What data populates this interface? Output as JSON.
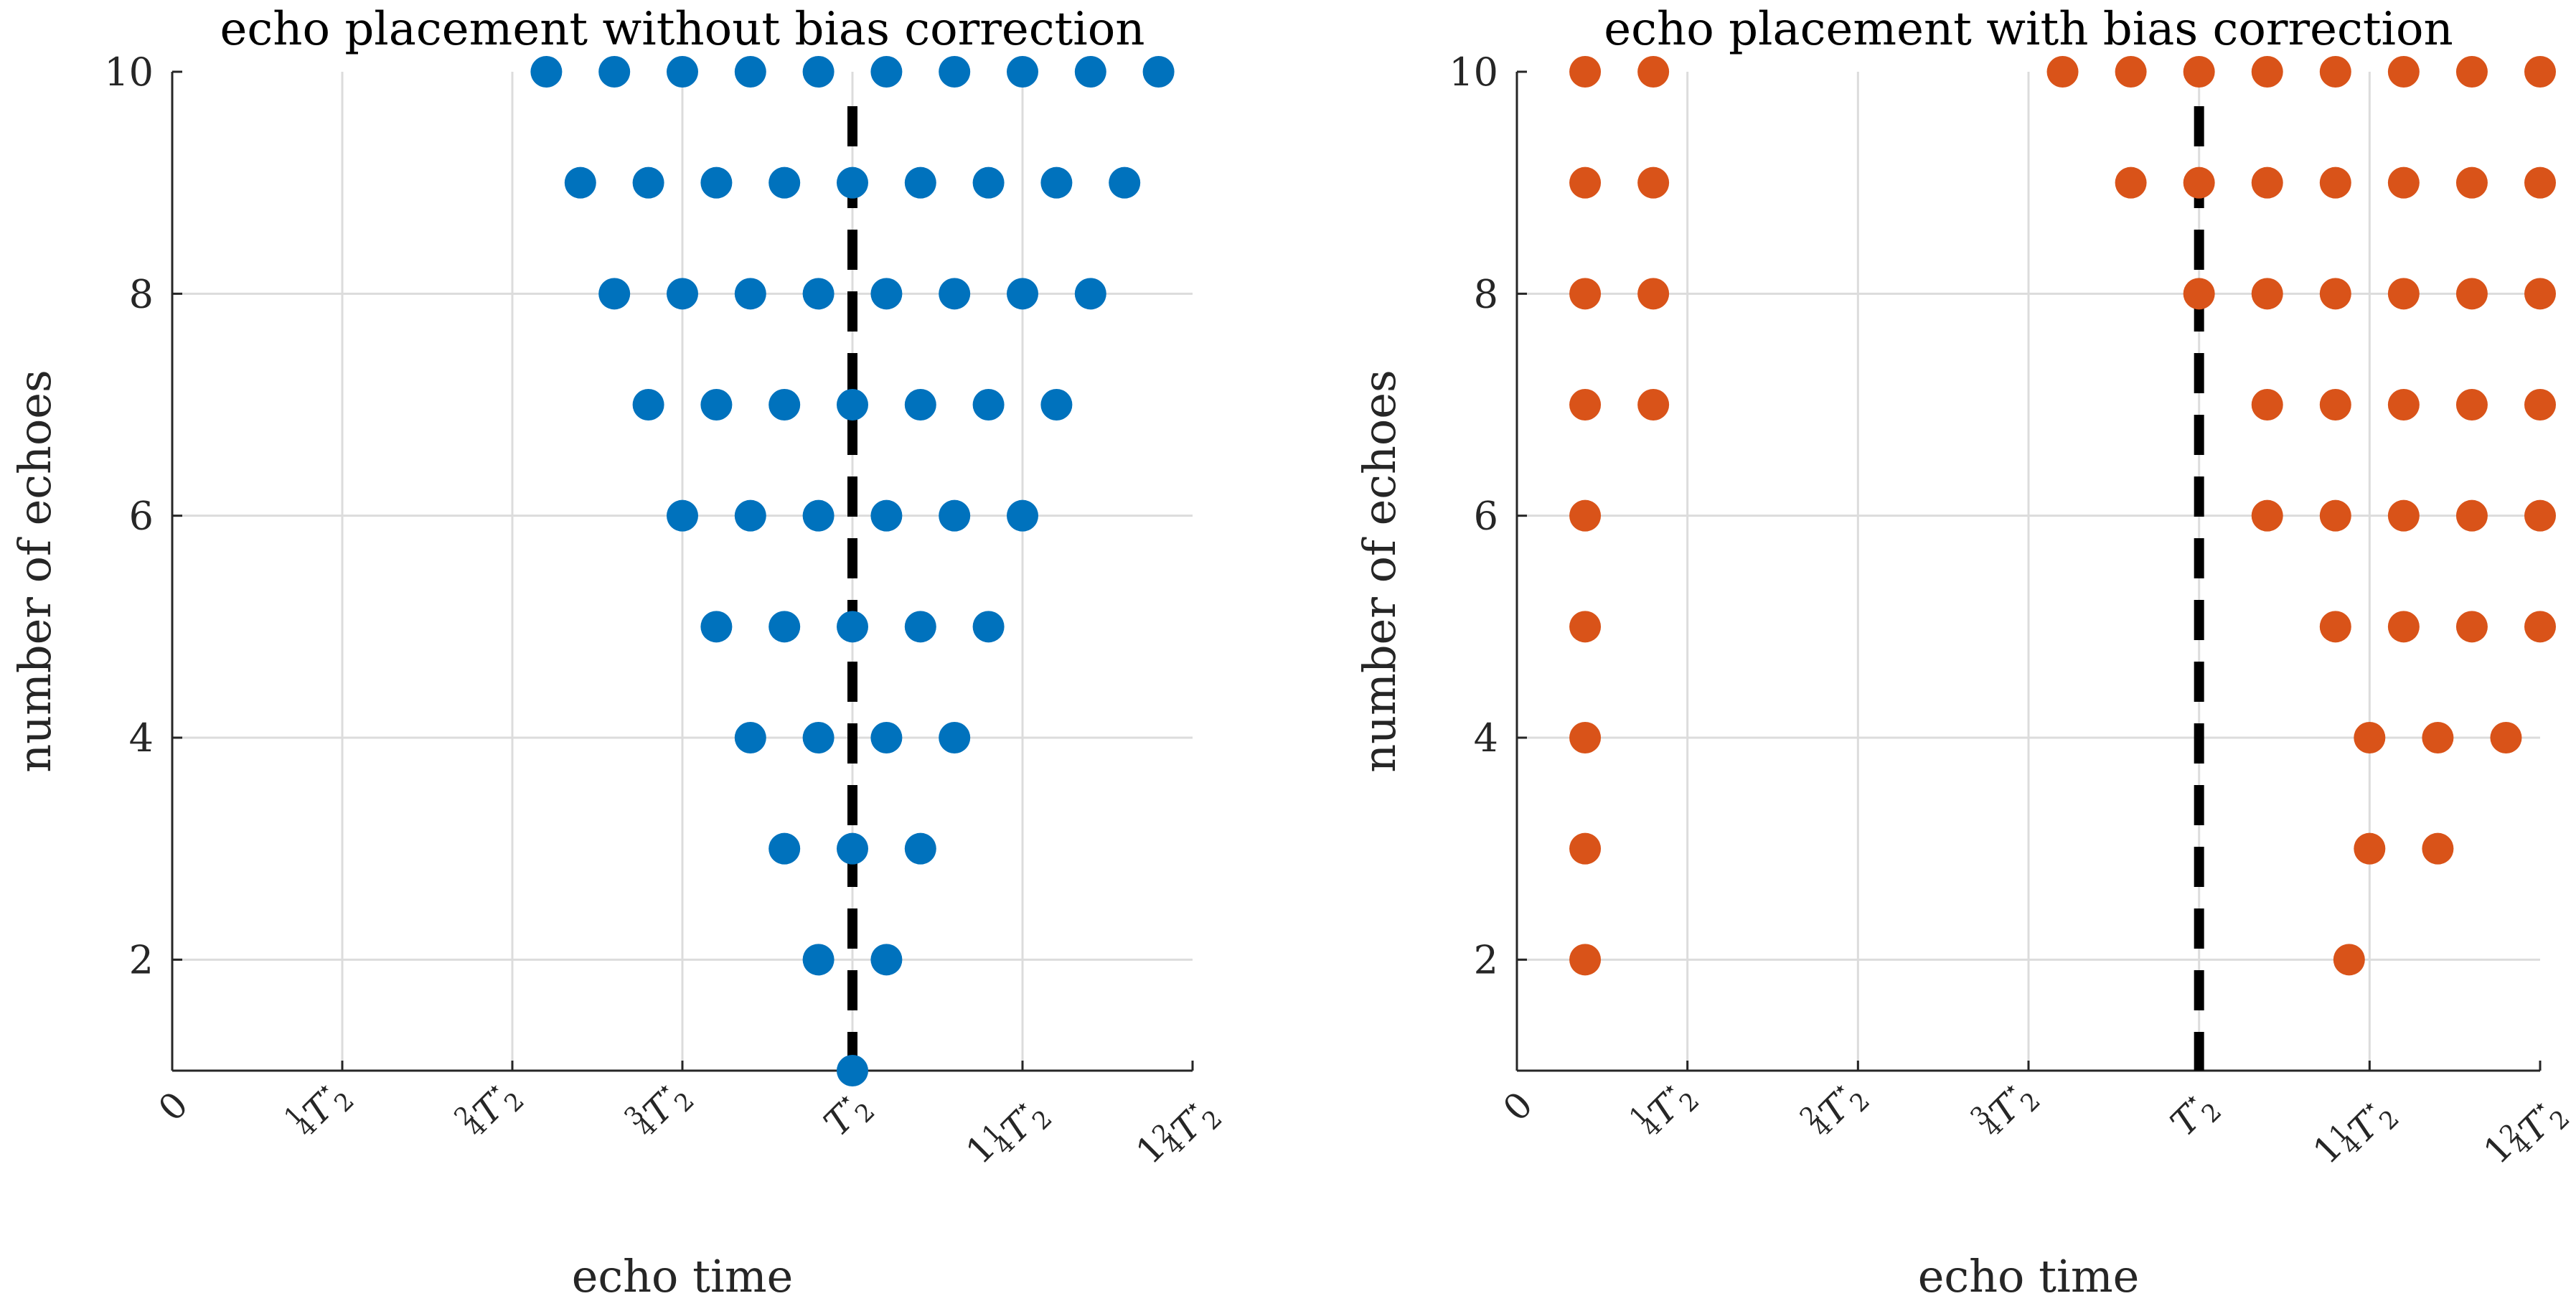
{
  "colors": {
    "left": "#0072BD",
    "right": "#D95319",
    "reference": "#000000",
    "grid": "#DCDCDC",
    "axis": "#262626"
  },
  "chart_data": [
    {
      "type": "scatter",
      "title": "echo placement without bias correction",
      "xlabel": "echo time",
      "ylabel": "number of echoes",
      "xlim": [
        0,
        1.5
      ],
      "ylim": [
        1,
        10
      ],
      "x_ticks": [
        0,
        0.25,
        0.5,
        0.75,
        1.0,
        1.25,
        1.5
      ],
      "x_tick_labels": [
        {
          "whole": "0"
        },
        {
          "whole": "",
          "num": "1",
          "den": "4",
          "sym": "T",
          "sub": "2",
          "sup": "⋆"
        },
        {
          "whole": "",
          "num": "2",
          "den": "4",
          "sym": "T",
          "sub": "2",
          "sup": "⋆"
        },
        {
          "whole": "",
          "num": "3",
          "den": "4",
          "sym": "T",
          "sub": "2",
          "sup": "⋆"
        },
        {
          "whole": "",
          "sym": "T",
          "sub": "2",
          "sup": "⋆"
        },
        {
          "whole": "1",
          "num": "1",
          "den": "4",
          "sym": "T",
          "sub": "2",
          "sup": "⋆"
        },
        {
          "whole": "1",
          "num": "2",
          "den": "4",
          "sym": "T",
          "sub": "2",
          "sup": "⋆"
        }
      ],
      "y_ticks": [
        2,
        4,
        6,
        8,
        10
      ],
      "y_tick_labels": [
        "2",
        "4",
        "6",
        "8",
        "10"
      ],
      "reference_line": 1.0,
      "grid": true,
      "points": [
        {
          "y": 1,
          "x": [
            1.0
          ]
        },
        {
          "y": 2,
          "x": [
            0.95,
            1.05
          ]
        },
        {
          "y": 3,
          "x": [
            0.9,
            1.0,
            1.1
          ]
        },
        {
          "y": 4,
          "x": [
            0.85,
            0.95,
            1.05,
            1.15
          ]
        },
        {
          "y": 5,
          "x": [
            0.8,
            0.9,
            1.0,
            1.1,
            1.2
          ]
        },
        {
          "y": 6,
          "x": [
            0.75,
            0.85,
            0.95,
            1.05,
            1.15,
            1.25
          ]
        },
        {
          "y": 7,
          "x": [
            0.7,
            0.8,
            0.9,
            1.0,
            1.1,
            1.2,
            1.3
          ]
        },
        {
          "y": 8,
          "x": [
            0.65,
            0.75,
            0.85,
            0.95,
            1.05,
            1.15,
            1.25,
            1.35
          ]
        },
        {
          "y": 9,
          "x": [
            0.6,
            0.7,
            0.8,
            0.9,
            1.0,
            1.1,
            1.2,
            1.3,
            1.4
          ]
        },
        {
          "y": 10,
          "x": [
            0.55,
            0.65,
            0.75,
            0.85,
            0.95,
            1.05,
            1.15,
            1.25,
            1.35,
            1.45
          ]
        }
      ]
    },
    {
      "type": "scatter",
      "title": "echo placement with bias correction",
      "xlabel": "echo time",
      "ylabel": "number of echoes",
      "xlim": [
        0,
        1.5
      ],
      "ylim": [
        1,
        10
      ],
      "x_ticks": [
        0,
        0.25,
        0.5,
        0.75,
        1.0,
        1.25,
        1.5
      ],
      "x_tick_labels": [
        {
          "whole": "0"
        },
        {
          "whole": "",
          "num": "1",
          "den": "4",
          "sym": "T",
          "sub": "2",
          "sup": "⋆"
        },
        {
          "whole": "",
          "num": "2",
          "den": "4",
          "sym": "T",
          "sub": "2",
          "sup": "⋆"
        },
        {
          "whole": "",
          "num": "3",
          "den": "4",
          "sym": "T",
          "sub": "2",
          "sup": "⋆"
        },
        {
          "whole": "",
          "sym": "T",
          "sub": "2",
          "sup": "⋆"
        },
        {
          "whole": "1",
          "num": "1",
          "den": "4",
          "sym": "T",
          "sub": "2",
          "sup": "⋆"
        },
        {
          "whole": "1",
          "num": "2",
          "den": "4",
          "sym": "T",
          "sub": "2",
          "sup": "⋆"
        }
      ],
      "y_ticks": [
        2,
        4,
        6,
        8,
        10
      ],
      "y_tick_labels": [
        "2",
        "4",
        "6",
        "8",
        "10"
      ],
      "reference_line": 1.0,
      "grid": true,
      "points": [
        {
          "y": 2,
          "x": [
            0.1,
            1.22
          ]
        },
        {
          "y": 3,
          "x": [
            0.1,
            1.25,
            1.35
          ]
        },
        {
          "y": 4,
          "x": [
            0.1,
            1.25,
            1.35,
            1.45
          ]
        },
        {
          "y": 5,
          "x": [
            0.1,
            1.2,
            1.3,
            1.4,
            1.5
          ]
        },
        {
          "y": 6,
          "x": [
            0.1,
            1.1,
            1.2,
            1.3,
            1.4,
            1.5
          ]
        },
        {
          "y": 7,
          "x": [
            0.1,
            0.2,
            1.1,
            1.2,
            1.3,
            1.4,
            1.5
          ]
        },
        {
          "y": 8,
          "x": [
            0.1,
            0.2,
            1.0,
            1.1,
            1.2,
            1.3,
            1.4,
            1.5
          ]
        },
        {
          "y": 9,
          "x": [
            0.1,
            0.2,
            0.9,
            1.0,
            1.1,
            1.2,
            1.3,
            1.4,
            1.5
          ]
        },
        {
          "y": 10,
          "x": [
            0.1,
            0.2,
            0.8,
            0.9,
            1.0,
            1.1,
            1.2,
            1.3,
            1.4,
            1.5
          ]
        }
      ]
    }
  ]
}
